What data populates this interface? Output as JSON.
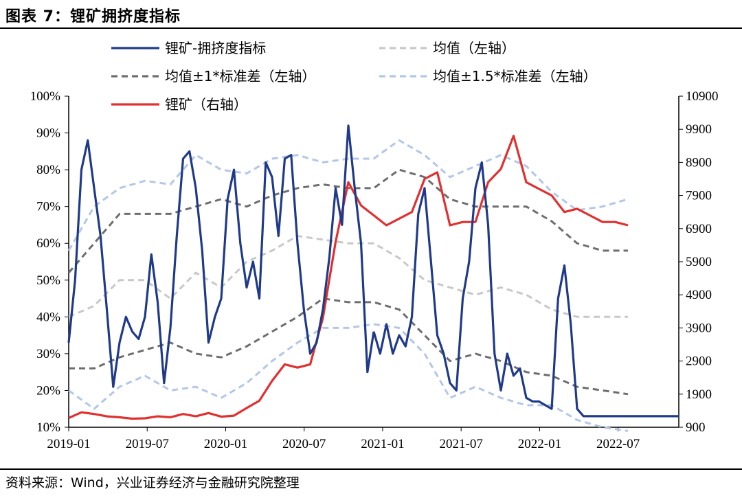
{
  "figure": {
    "title": "图表 7：锂矿拥挤度指标",
    "source": "资料来源：Wind，兴业证券经济与金融研究院整理"
  },
  "chart_data": {
    "type": "line",
    "x_ticks": [
      "2019-01",
      "2019-07",
      "2020-01",
      "2020-07",
      "2021-01",
      "2021-07",
      "2022-01",
      "2022-07"
    ],
    "y_left": {
      "ylim": [
        10,
        100
      ],
      "ticks": [
        "10%",
        "20%",
        "30%",
        "40%",
        "50%",
        "60%",
        "70%",
        "80%",
        "90%",
        "100%"
      ]
    },
    "y_right": {
      "ylim": [
        900,
        10900
      ],
      "ticks": [
        "900",
        "1900",
        "2900",
        "3900",
        "4900",
        "5900",
        "6900",
        "7900",
        "8900",
        "9900",
        "10900"
      ]
    },
    "legend": [
      {
        "name": "锂矿-拥挤度指标",
        "color": "#1f3a8a",
        "style": "solid"
      },
      {
        "name": "均值（左轴）",
        "color": "#c8c8c8",
        "style": "dashed"
      },
      {
        "name": "均值±1*标准差（左轴）",
        "color": "#6e6e6e",
        "style": "dashed"
      },
      {
        "name": "均值±1.5*标准差（左轴）",
        "color": "#b4c6e7",
        "style": "dashed"
      },
      {
        "name": "锂矿（右轴）",
        "color": "#e03030",
        "style": "solid"
      }
    ],
    "series": [
      {
        "name": "锂矿-拥挤度指标",
        "axis": "left",
        "x": [
          0,
          1,
          2,
          3,
          4,
          5,
          6,
          7,
          8,
          9,
          10,
          11,
          12,
          13,
          14,
          15,
          16,
          17,
          18,
          19,
          20,
          21,
          22,
          23,
          24,
          25,
          26,
          27,
          28,
          29,
          30,
          31,
          32,
          33,
          34,
          35,
          36,
          37,
          38,
          39,
          40,
          41,
          42,
          43,
          44,
          45,
          46,
          47,
          48
        ],
        "values": [
          33,
          50,
          80,
          88,
          75,
          62,
          42,
          21,
          33,
          40,
          36,
          34,
          40,
          57,
          44,
          22,
          37,
          62,
          83,
          85,
          75,
          58,
          33,
          40,
          45,
          72,
          80,
          60,
          48,
          55,
          45,
          82,
          78,
          62,
          83,
          84,
          60,
          42,
          30,
          33,
          42,
          56,
          75,
          65,
          92,
          75,
          60,
          25,
          36
        ]
      },
      {
        "name": "锂矿-拥挤度指标(续)",
        "axis": "left",
        "x": [
          48,
          49,
          50,
          51,
          52,
          53,
          54,
          55,
          56,
          57,
          58,
          59,
          60,
          61,
          62,
          63,
          64,
          65,
          66,
          67,
          68,
          69,
          70,
          71,
          72,
          73,
          74,
          75,
          76,
          77,
          78,
          79,
          80,
          81,
          82,
          83,
          84,
          85,
          86,
          87,
          88,
          89,
          90,
          91,
          92,
          93,
          94,
          95,
          96
        ],
        "values": [
          36,
          30,
          38,
          30,
          35,
          32,
          40,
          68,
          75,
          55,
          35,
          30,
          22,
          20,
          45,
          55,
          75,
          82,
          65,
          30,
          20,
          30,
          24,
          26,
          18,
          17,
          17,
          16,
          15,
          45,
          54,
          38,
          15,
          13,
          13,
          13,
          13,
          13,
          13,
          13,
          13,
          13,
          13,
          13,
          13,
          13,
          13,
          13,
          13
        ]
      },
      {
        "name": "均值（左轴）",
        "axis": "left",
        "x": [
          0,
          4,
          8,
          12,
          16,
          20,
          24,
          28,
          32,
          36,
          40,
          44,
          48,
          52,
          56,
          60,
          64,
          68,
          72,
          76,
          80,
          84,
          88
        ],
        "values": [
          40,
          43,
          50,
          50,
          45,
          52,
          48,
          55,
          58,
          62,
          61,
          60,
          60,
          56,
          50,
          48,
          46,
          48,
          46,
          42,
          40,
          40,
          40
        ]
      },
      {
        "name": "均值+1*标准差（左轴）",
        "axis": "left",
        "x": [
          0,
          4,
          8,
          12,
          16,
          20,
          24,
          28,
          32,
          36,
          40,
          44,
          48,
          52,
          56,
          60,
          64,
          68,
          72,
          76,
          80,
          84,
          88
        ],
        "values": [
          52,
          60,
          68,
          68,
          68,
          70,
          72,
          70,
          73,
          75,
          76,
          75,
          75,
          80,
          78,
          72,
          70,
          70,
          70,
          66,
          60,
          58,
          58
        ]
      },
      {
        "name": "均值-1*标准差（左轴）",
        "axis": "left",
        "x": [
          0,
          4,
          8,
          12,
          16,
          20,
          24,
          28,
          32,
          36,
          40,
          44,
          48,
          52,
          56,
          60,
          64,
          68,
          72,
          76,
          80,
          84,
          88
        ],
        "values": [
          26,
          26,
          29,
          31,
          33,
          30,
          29,
          32,
          36,
          40,
          45,
          44,
          44,
          42,
          35,
          28,
          30,
          28,
          25,
          24,
          21,
          20,
          19
        ]
      },
      {
        "name": "均值+1.5*标准差（左轴）",
        "axis": "left",
        "x": [
          0,
          4,
          8,
          12,
          16,
          20,
          24,
          28,
          32,
          36,
          40,
          44,
          48,
          52,
          56,
          60,
          64,
          68,
          72,
          76,
          80,
          84,
          88
        ],
        "values": [
          58,
          70,
          75,
          77,
          76,
          84,
          80,
          79,
          83,
          84,
          82,
          83,
          83,
          88,
          84,
          78,
          81,
          84,
          81,
          74,
          69,
          70,
          72
        ]
      },
      {
        "name": "均值-1.5*标准差（左轴）",
        "axis": "left",
        "x": [
          0,
          4,
          8,
          12,
          16,
          20,
          24,
          28,
          32,
          36,
          40,
          44,
          48,
          52,
          56,
          60,
          64,
          68,
          72,
          76,
          80,
          84,
          88
        ],
        "values": [
          20,
          15,
          21,
          24,
          20,
          21,
          18,
          22,
          28,
          33,
          37,
          37,
          38,
          37,
          30,
          18,
          21,
          18,
          16,
          16,
          12,
          10,
          9
        ]
      },
      {
        "name": "锂矿（右轴）",
        "axis": "right",
        "x": [
          0,
          2,
          4,
          6,
          8,
          10,
          12,
          14,
          16,
          18,
          20,
          22,
          24,
          26,
          28,
          30,
          32,
          34,
          36,
          38,
          40,
          42,
          44,
          46,
          48,
          50,
          52,
          54,
          56,
          58,
          60,
          62,
          64,
          66,
          68,
          70,
          72,
          74,
          76,
          78,
          80,
          82,
          84,
          86,
          88
        ],
        "values": [
          1180,
          1350,
          1300,
          1230,
          1200,
          1160,
          1170,
          1230,
          1200,
          1300,
          1230,
          1330,
          1220,
          1250,
          1480,
          1700,
          2300,
          2800,
          2700,
          2800,
          4200,
          6500,
          8300,
          7600,
          7300,
          7000,
          7200,
          7400,
          8400,
          8600,
          7000,
          7100,
          7100,
          8300,
          8700,
          9700,
          8300,
          8100,
          7900,
          7400,
          7500,
          7300,
          7100,
          7100,
          7000
        ]
      }
    ]
  }
}
